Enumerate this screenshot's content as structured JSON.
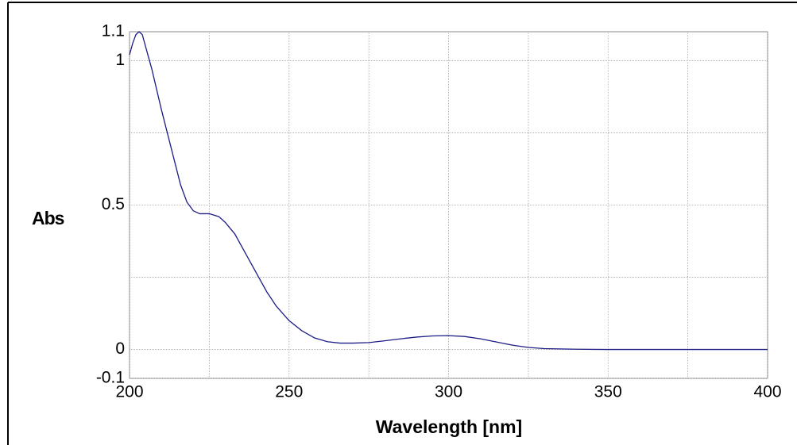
{
  "chart_data": {
    "type": "line",
    "xlabel": "Wavelength [nm]",
    "ylabel": "Abs",
    "x": [
      200,
      201,
      202,
      203,
      204,
      205,
      207,
      210,
      213,
      216,
      218,
      220,
      222,
      225,
      228,
      230,
      233,
      236,
      240,
      243,
      246,
      250,
      254,
      258,
      262,
      266,
      270,
      275,
      280,
      285,
      290,
      295,
      300,
      305,
      310,
      315,
      320,
      325,
      330,
      340,
      350,
      375,
      400
    ],
    "series": [
      {
        "color": "#1c1c86",
        "values": [
          1.02,
          1.06,
          1.09,
          1.1,
          1.09,
          1.05,
          0.97,
          0.83,
          0.7,
          0.57,
          0.51,
          0.48,
          0.47,
          0.47,
          0.46,
          0.44,
          0.4,
          0.34,
          0.26,
          0.2,
          0.15,
          0.1,
          0.065,
          0.04,
          0.027,
          0.022,
          0.022,
          0.024,
          0.03,
          0.037,
          0.043,
          0.047,
          0.048,
          0.045,
          0.037,
          0.026,
          0.015,
          0.007,
          0.003,
          0.001,
          0,
          0,
          0
        ]
      }
    ],
    "xlim": [
      200,
      400
    ],
    "xticks": [
      200,
      250,
      300,
      350,
      400
    ],
    "xminor": [
      225,
      275,
      325,
      375
    ],
    "ylim": [
      -0.1,
      1.1
    ],
    "yticks": [
      -0.1,
      0,
      0.5,
      1,
      1.1
    ],
    "yminor": [
      0.25,
      0.75
    ],
    "grid": true
  }
}
